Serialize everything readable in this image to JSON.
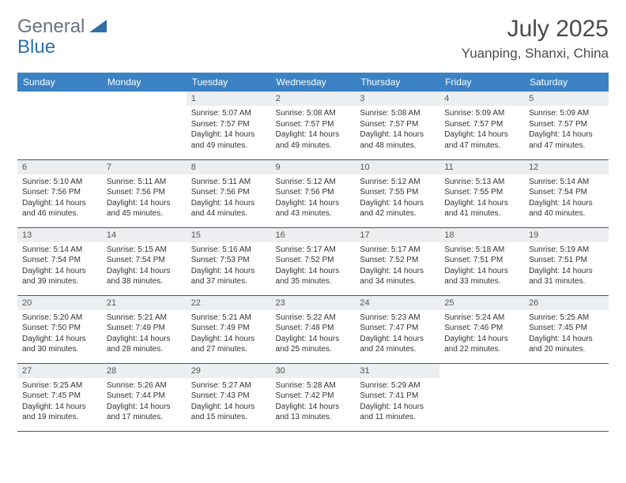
{
  "logo": {
    "text1": "General",
    "text2": "Blue"
  },
  "title": "July 2025",
  "location": "Yuanping, Shanxi, China",
  "colors": {
    "header_bg": "#3b82c4",
    "header_text": "#ffffff",
    "daynum_bg": "#eceef0",
    "row_border": "#3b5b7a",
    "logo_gray": "#6b7280",
    "logo_blue": "#2f6fa8"
  },
  "weekdays": [
    "Sunday",
    "Monday",
    "Tuesday",
    "Wednesday",
    "Thursday",
    "Friday",
    "Saturday"
  ],
  "weeks": [
    [
      null,
      null,
      {
        "n": "1",
        "sr": "5:07 AM",
        "ss": "7:57 PM",
        "dl": "14 hours and 49 minutes."
      },
      {
        "n": "2",
        "sr": "5:08 AM",
        "ss": "7:57 PM",
        "dl": "14 hours and 49 minutes."
      },
      {
        "n": "3",
        "sr": "5:08 AM",
        "ss": "7:57 PM",
        "dl": "14 hours and 48 minutes."
      },
      {
        "n": "4",
        "sr": "5:09 AM",
        "ss": "7:57 PM",
        "dl": "14 hours and 47 minutes."
      },
      {
        "n": "5",
        "sr": "5:09 AM",
        "ss": "7:57 PM",
        "dl": "14 hours and 47 minutes."
      }
    ],
    [
      {
        "n": "6",
        "sr": "5:10 AM",
        "ss": "7:56 PM",
        "dl": "14 hours and 46 minutes."
      },
      {
        "n": "7",
        "sr": "5:11 AM",
        "ss": "7:56 PM",
        "dl": "14 hours and 45 minutes."
      },
      {
        "n": "8",
        "sr": "5:11 AM",
        "ss": "7:56 PM",
        "dl": "14 hours and 44 minutes."
      },
      {
        "n": "9",
        "sr": "5:12 AM",
        "ss": "7:56 PM",
        "dl": "14 hours and 43 minutes."
      },
      {
        "n": "10",
        "sr": "5:12 AM",
        "ss": "7:55 PM",
        "dl": "14 hours and 42 minutes."
      },
      {
        "n": "11",
        "sr": "5:13 AM",
        "ss": "7:55 PM",
        "dl": "14 hours and 41 minutes."
      },
      {
        "n": "12",
        "sr": "5:14 AM",
        "ss": "7:54 PM",
        "dl": "14 hours and 40 minutes."
      }
    ],
    [
      {
        "n": "13",
        "sr": "5:14 AM",
        "ss": "7:54 PM",
        "dl": "14 hours and 39 minutes."
      },
      {
        "n": "14",
        "sr": "5:15 AM",
        "ss": "7:54 PM",
        "dl": "14 hours and 38 minutes."
      },
      {
        "n": "15",
        "sr": "5:16 AM",
        "ss": "7:53 PM",
        "dl": "14 hours and 37 minutes."
      },
      {
        "n": "16",
        "sr": "5:17 AM",
        "ss": "7:52 PM",
        "dl": "14 hours and 35 minutes."
      },
      {
        "n": "17",
        "sr": "5:17 AM",
        "ss": "7:52 PM",
        "dl": "14 hours and 34 minutes."
      },
      {
        "n": "18",
        "sr": "5:18 AM",
        "ss": "7:51 PM",
        "dl": "14 hours and 33 minutes."
      },
      {
        "n": "19",
        "sr": "5:19 AM",
        "ss": "7:51 PM",
        "dl": "14 hours and 31 minutes."
      }
    ],
    [
      {
        "n": "20",
        "sr": "5:20 AM",
        "ss": "7:50 PM",
        "dl": "14 hours and 30 minutes."
      },
      {
        "n": "21",
        "sr": "5:21 AM",
        "ss": "7:49 PM",
        "dl": "14 hours and 28 minutes."
      },
      {
        "n": "22",
        "sr": "5:21 AM",
        "ss": "7:49 PM",
        "dl": "14 hours and 27 minutes."
      },
      {
        "n": "23",
        "sr": "5:22 AM",
        "ss": "7:48 PM",
        "dl": "14 hours and 25 minutes."
      },
      {
        "n": "24",
        "sr": "5:23 AM",
        "ss": "7:47 PM",
        "dl": "14 hours and 24 minutes."
      },
      {
        "n": "25",
        "sr": "5:24 AM",
        "ss": "7:46 PM",
        "dl": "14 hours and 22 minutes."
      },
      {
        "n": "26",
        "sr": "5:25 AM",
        "ss": "7:45 PM",
        "dl": "14 hours and 20 minutes."
      }
    ],
    [
      {
        "n": "27",
        "sr": "5:25 AM",
        "ss": "7:45 PM",
        "dl": "14 hours and 19 minutes."
      },
      {
        "n": "28",
        "sr": "5:26 AM",
        "ss": "7:44 PM",
        "dl": "14 hours and 17 minutes."
      },
      {
        "n": "29",
        "sr": "5:27 AM",
        "ss": "7:43 PM",
        "dl": "14 hours and 15 minutes."
      },
      {
        "n": "30",
        "sr": "5:28 AM",
        "ss": "7:42 PM",
        "dl": "14 hours and 13 minutes."
      },
      {
        "n": "31",
        "sr": "5:29 AM",
        "ss": "7:41 PM",
        "dl": "14 hours and 11 minutes."
      },
      null,
      null
    ]
  ],
  "labels": {
    "sunrise": "Sunrise:",
    "sunset": "Sunset:",
    "daylight": "Daylight:"
  }
}
